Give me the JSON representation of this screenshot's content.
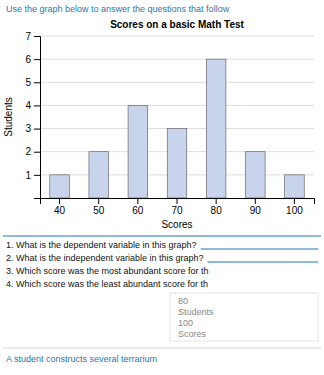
{
  "chart_data": {
    "type": "bar",
    "title": "Scores on a basic Math Test",
    "xlabel": "Scores",
    "ylabel": "Students",
    "categories": [
      40,
      50,
      60,
      70,
      80,
      90,
      100
    ],
    "values": [
      1,
      2,
      4,
      3,
      6,
      2,
      1
    ],
    "color": "#c8d4ec",
    "ylim": [
      0,
      7
    ],
    "yticks": [
      1,
      2,
      3,
      4,
      5,
      6,
      7
    ],
    "grid": true,
    "annotations": [
      "Use the graph below to answer the questions that follow",
      "1. What is the dependent variable in this graph?",
      "2. What is the independent variable in this graph?",
      "3. Which score was the most abundant score for th",
      "4. Which score was the least abundant score for th",
      "80",
      "Students",
      "100",
      "Scores",
      "A student constructs several terrarium"
    ]
  }
}
